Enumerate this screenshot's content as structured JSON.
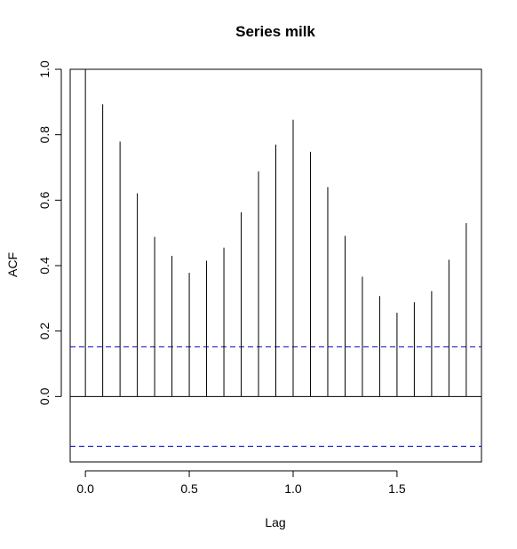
{
  "chart_data": {
    "type": "bar",
    "title": "Series  milk",
    "xlabel": "Lag",
    "ylabel": "ACF",
    "xlim": [
      -0.0733,
      1.9066
    ],
    "ylim": [
      -0.2,
      1.0
    ],
    "x_ticks": [
      {
        "value": 0.0,
        "label": "0.0"
      },
      {
        "value": 0.5,
        "label": "0.5"
      },
      {
        "value": 1.0,
        "label": "1.0"
      },
      {
        "value": 1.5,
        "label": "1.5"
      }
    ],
    "y_ticks": [
      {
        "value": 0.0,
        "label": "0.0"
      },
      {
        "value": 0.2,
        "label": "0.2"
      },
      {
        "value": 0.4,
        "label": "0.4"
      },
      {
        "value": 0.6,
        "label": "0.6"
      },
      {
        "value": 0.8,
        "label": "0.8"
      },
      {
        "value": 1.0,
        "label": "1.0"
      }
    ],
    "lags": [
      0.0,
      0.0833,
      0.1667,
      0.25,
      0.3333,
      0.4167,
      0.5,
      0.5833,
      0.6667,
      0.75,
      0.8333,
      0.9167,
      1.0,
      1.0833,
      1.1667,
      1.25,
      1.3333,
      1.4167,
      1.5,
      1.5833,
      1.6667,
      1.75,
      1.8333
    ],
    "acf": [
      1.0,
      0.893,
      0.779,
      0.621,
      0.488,
      0.43,
      0.378,
      0.415,
      0.455,
      0.563,
      0.688,
      0.77,
      0.846,
      0.748,
      0.64,
      0.491,
      0.366,
      0.307,
      0.256,
      0.288,
      0.322,
      0.418,
      0.53
    ],
    "confidence_bounds": [
      0.152,
      -0.152
    ],
    "colors": {
      "spike": "#000000",
      "confidence": "#0000cc",
      "axis": "#000000"
    },
    "grid": false,
    "legend": "none"
  }
}
